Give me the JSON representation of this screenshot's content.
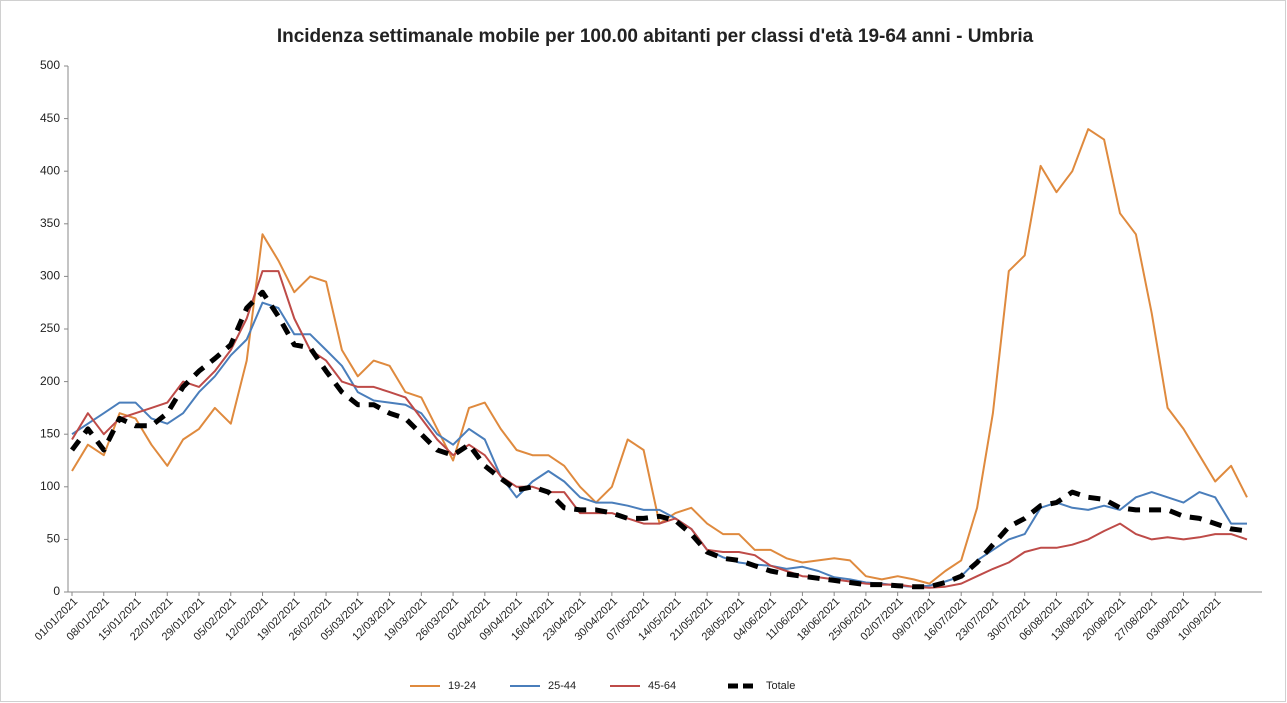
{
  "chart_data": {
    "type": "line",
    "title": "Incidenza settimanale mobile per 100.00 abitanti per classi d'età  19-64 anni - Umbria",
    "categories": [
      "01/01/2021",
      null,
      "08/01/2021",
      null,
      "15/01/2021",
      null,
      "22/01/2021",
      null,
      "29/01/2021",
      null,
      "05/02/2021",
      null,
      "12/02/2021",
      null,
      "19/02/2021",
      null,
      "26/02/2021",
      null,
      "05/03/2021",
      null,
      "12/03/2021",
      null,
      "19/03/2021",
      null,
      "26/03/2021",
      null,
      "02/04/2021",
      null,
      "09/04/2021",
      null,
      "16/04/2021",
      null,
      "23/04/2021",
      null,
      "30/04/2021",
      null,
      "07/05/2021",
      null,
      "14/05/2021",
      null,
      "21/05/2021",
      null,
      "28/05/2021",
      null,
      "04/06/2021",
      null,
      "11/06/2021",
      null,
      "18/06/2021",
      null,
      "25/06/2021",
      null,
      "02/07/2021",
      null,
      "09/07/2021",
      null,
      "16/07/2021",
      null,
      "23/07/2021",
      null,
      "30/07/2021",
      null,
      "06/08/2021",
      null,
      "13/08/2021",
      null,
      "20/08/2021",
      null,
      "27/08/2021",
      null,
      "03/09/2021",
      null,
      "10/09/2021",
      null,
      null
    ],
    "series": [
      {
        "name": "19-24",
        "color": "#df8a3e",
        "line_style": "solid",
        "values": [
          115,
          140,
          130,
          170,
          165,
          140,
          120,
          145,
          155,
          175,
          160,
          220,
          340,
          315,
          285,
          300,
          295,
          230,
          205,
          220,
          215,
          190,
          185,
          155,
          125,
          175,
          180,
          155,
          135,
          130,
          130,
          120,
          100,
          85,
          100,
          145,
          135,
          65,
          75,
          80,
          65,
          55,
          55,
          40,
          40,
          32,
          28,
          30,
          32,
          30,
          15,
          12,
          15,
          12,
          8,
          20,
          30,
          80,
          170,
          305,
          320,
          405,
          380,
          400,
          440,
          430,
          360,
          340,
          265,
          175,
          155,
          130,
          105,
          120,
          90
        ]
      },
      {
        "name": "25-44",
        "color": "#4a7ebb",
        "line_style": "solid",
        "values": [
          150,
          160,
          170,
          180,
          180,
          165,
          160,
          170,
          190,
          205,
          225,
          240,
          275,
          270,
          245,
          245,
          230,
          215,
          190,
          182,
          180,
          178,
          170,
          150,
          140,
          155,
          145,
          110,
          90,
          105,
          115,
          105,
          90,
          85,
          85,
          82,
          78,
          78,
          70,
          60,
          40,
          33,
          28,
          26,
          25,
          22,
          24,
          20,
          14,
          12,
          9,
          8,
          6,
          5,
          6,
          10,
          15,
          30,
          40,
          50,
          55,
          80,
          85,
          80,
          78,
          82,
          78,
          90,
          95,
          90,
          85,
          95,
          90,
          65,
          65
        ]
      },
      {
        "name": "45-64",
        "color": "#be4b48",
        "line_style": "solid",
        "values": [
          145,
          170,
          150,
          165,
          170,
          175,
          180,
          200,
          195,
          210,
          230,
          260,
          305,
          305,
          260,
          230,
          220,
          200,
          195,
          195,
          190,
          185,
          165,
          145,
          130,
          140,
          130,
          110,
          100,
          100,
          95,
          95,
          75,
          75,
          75,
          70,
          65,
          65,
          70,
          60,
          40,
          38,
          38,
          35,
          25,
          20,
          15,
          14,
          12,
          10,
          8,
          7,
          7,
          5,
          4,
          5,
          8,
          15,
          22,
          28,
          38,
          42,
          42,
          45,
          50,
          58,
          65,
          55,
          50,
          52,
          50,
          52,
          55,
          55,
          50
        ]
      },
      {
        "name": "Totale",
        "color": "#000000",
        "line_style": "dashed",
        "values": [
          135,
          155,
          135,
          165,
          158,
          158,
          170,
          195,
          210,
          222,
          235,
          270,
          285,
          262,
          235,
          232,
          210,
          190,
          178,
          178,
          170,
          165,
          150,
          135,
          130,
          140,
          120,
          108,
          97,
          100,
          95,
          80,
          78,
          78,
          75,
          70,
          70,
          72,
          68,
          55,
          38,
          32,
          30,
          25,
          20,
          17,
          15,
          13,
          11,
          9,
          7,
          7,
          6,
          5,
          5,
          9,
          15,
          28,
          45,
          62,
          70,
          82,
          85,
          95,
          90,
          88,
          80,
          78,
          78,
          78,
          72,
          70,
          65,
          60,
          58
        ]
      }
    ],
    "ylim": [
      0,
      500
    ],
    "yticks": [
      0,
      50,
      100,
      150,
      200,
      250,
      300,
      350,
      400,
      450,
      500
    ],
    "grid": false,
    "legend": "bottom"
  }
}
